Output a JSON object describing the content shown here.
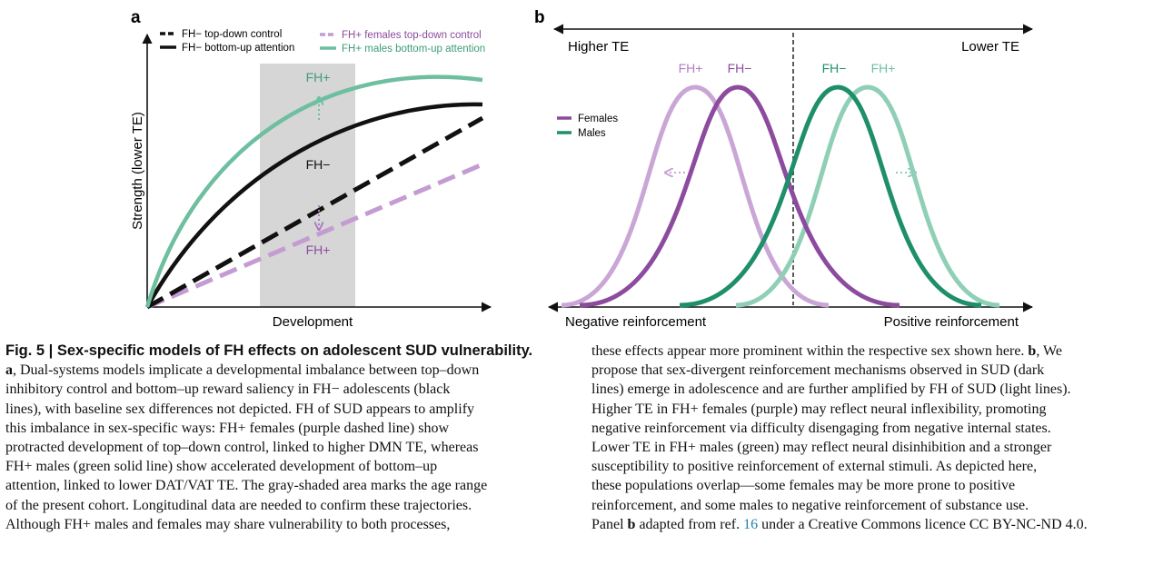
{
  "panel_a": {
    "label": "a",
    "legend": {
      "fh_neg_top_down": "FH− top-down control",
      "fh_neg_bottom_up": "FH− bottom-up attention",
      "fh_pos_females_top_down": "FH+ females top-down control",
      "fh_pos_males_bottom_up": "FH+ males bottom-up attention"
    },
    "y_axis_label": "Strength (lower TE)",
    "x_axis_label": "Development",
    "annotation_fh_pos_top": "FH+",
    "annotation_fh_neg": "FH−",
    "annotation_fh_pos_bottom": "FH+"
  },
  "panel_b": {
    "label": "b",
    "higher_te": "Higher TE",
    "lower_te": "Lower TE",
    "curve_labels": [
      "FH+",
      "FH−",
      "FH−",
      "FH+"
    ],
    "legend_females": "Females",
    "legend_males": "Males",
    "negative_reinforcement": "Negative reinforcement",
    "positive_reinforcement": "Positive reinforcement"
  },
  "colors": {
    "purple_dark": "#8c4b9e",
    "purple_light": "#c9a6d6",
    "green_dark": "#1f8f6b",
    "green_light": "#8fcfb6",
    "teal_fh_pos": "#6dbf9f",
    "gray_band": "#d6d6d6",
    "ref_link": "#1f7fa8"
  },
  "caption": {
    "left_lines": [
      "Fig. 5 | Sex-specific models of FH effects on adolescent SUD vulnerability.",
      "a, Dual-systems models implicate a developmental imbalance between top–down",
      "inhibitory control and bottom–up reward saliency in FH− adolescents (black",
      "lines), with baseline sex differences not depicted. FH of SUD appears to amplify",
      "this imbalance in sex-specific ways: FH+ females (purple dashed line) show",
      "protracted development of top–down control, linked to higher DMN TE, whereas",
      "FH+ males (green solid line) show accelerated development of bottom–up",
      "attention, linked to lower DAT/VAT TE. The gray-shaded area marks the age range",
      "of the present cohort. Longitudinal data are needed to confirm these trajectories.",
      "Although FH+ males and females may share vulnerability to both processes,"
    ],
    "right_lines": [
      "these effects appear more prominent within the respective sex shown here. b, We",
      "propose that sex-divergent reinforcement mechanisms observed in SUD (dark",
      "lines) emerge in adolescence and are further amplified by FH of SUD (light lines).",
      "Higher TE in FH+ females (purple) may reflect neural inflexibility, promoting",
      "negative reinforcement via difficulty disengaging from negative internal states.",
      "Lower TE in FH+ males (green) may reflect neural disinhibition and a stronger",
      "susceptibility to positive reinforcement of external stimuli. As depicted here,",
      "these populations overlap—some females may be more prone to positive",
      "reinforcement, and some males to negative reinforcement of substance use."
    ],
    "last_line": {
      "pre": "Panel ",
      "bold": "b",
      "mid": " adapted from ref. ",
      "ref": "16",
      "post": " under a Creative Commons licence CC BY-NC-ND 4.0."
    }
  }
}
